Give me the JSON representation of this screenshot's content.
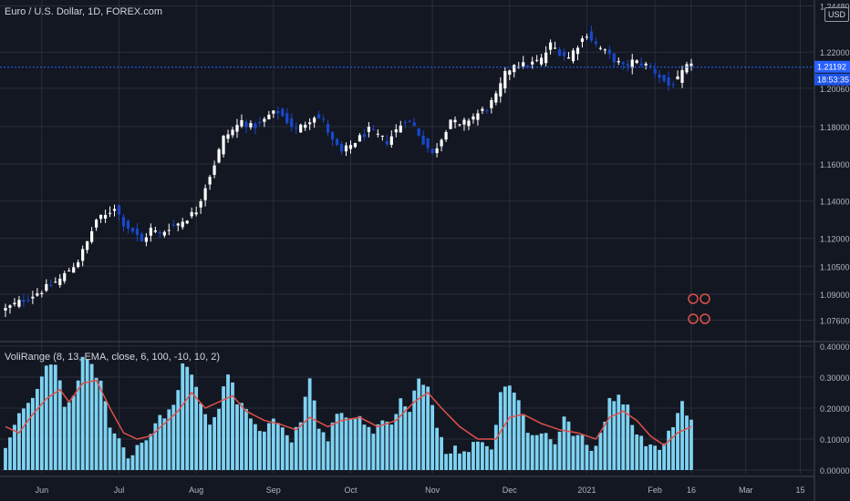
{
  "header": {
    "symbol_title": "Euro / U.S. Dollar, 1D, FOREX.com",
    "currency_badge": "USD",
    "indicator_title": "VoliRange (8, 13, EMA, close, 6, 100, -10, 10, 2)"
  },
  "price_axis": {
    "ticks": [
      "1.24480",
      "1.22000",
      "1.20060",
      "1.18000",
      "1.16000",
      "1.14000",
      "1.12000",
      "1.10500",
      "1.09000",
      "1.07600"
    ],
    "last_price": "1.21192",
    "countdown": "18:53:35"
  },
  "indicator_axis": {
    "ticks": [
      "0.40000",
      "0.30000",
      "0.20000",
      "0.10000",
      "0.00000"
    ]
  },
  "time_axis": {
    "labels": [
      "Jun",
      "Jul",
      "Aug",
      "Sep",
      "Oct",
      "Nov",
      "Dec",
      "2021",
      "Feb",
      "16",
      "Mar",
      "15"
    ]
  },
  "colors": {
    "background": "#131722",
    "candle_up": "#ffffff",
    "candle_down": "#1848cc",
    "volume_bar": "#7fd3f2",
    "ema_line": "#e0504a",
    "grid": "#2a2e39",
    "last_price_line": "#2962ff"
  },
  "chart_data": [
    {
      "type": "candlestick",
      "title": "Euro / U.S. Dollar, 1D, FOREX.com",
      "ylim": [
        1.066,
        1.248
      ],
      "grid": true,
      "x_labels": [
        "Jun",
        "Jul",
        "Aug",
        "Sep",
        "Oct",
        "Nov",
        "Dec",
        "2021",
        "Feb",
        "16",
        "Mar",
        "15"
      ],
      "close_path": [
        [
          0,
          1.082
        ],
        [
          4,
          1.087
        ],
        [
          8,
          1.092
        ],
        [
          12,
          1.098
        ],
        [
          16,
          1.108
        ],
        [
          18,
          1.118
        ],
        [
          20,
          1.13
        ],
        [
          22,
          1.132
        ],
        [
          24,
          1.137
        ],
        [
          26,
          1.128
        ],
        [
          28,
          1.124
        ],
        [
          30,
          1.118
        ],
        [
          32,
          1.125
        ],
        [
          34,
          1.122
        ],
        [
          36,
          1.126
        ],
        [
          38,
          1.128
        ],
        [
          40,
          1.131
        ],
        [
          42,
          1.135
        ],
        [
          44,
          1.148
        ],
        [
          46,
          1.16
        ],
        [
          48,
          1.174
        ],
        [
          50,
          1.178
        ],
        [
          52,
          1.183
        ],
        [
          54,
          1.18
        ],
        [
          56,
          1.181
        ],
        [
          58,
          1.186
        ],
        [
          60,
          1.188
        ],
        [
          62,
          1.183
        ],
        [
          64,
          1.178
        ],
        [
          66,
          1.182
        ],
        [
          68,
          1.186
        ],
        [
          70,
          1.183
        ],
        [
          72,
          1.172
        ],
        [
          74,
          1.166
        ],
        [
          76,
          1.17
        ],
        [
          78,
          1.174
        ],
        [
          80,
          1.178
        ],
        [
          82,
          1.175
        ],
        [
          84,
          1.172
        ],
        [
          86,
          1.178
        ],
        [
          88,
          1.184
        ],
        [
          90,
          1.18
        ],
        [
          92,
          1.172
        ],
        [
          94,
          1.165
        ],
        [
          96,
          1.174
        ],
        [
          98,
          1.184
        ],
        [
          100,
          1.18
        ],
        [
          102,
          1.184
        ],
        [
          104,
          1.187
        ],
        [
          106,
          1.19
        ],
        [
          108,
          1.196
        ],
        [
          110,
          1.208
        ],
        [
          112,
          1.214
        ],
        [
          114,
          1.213
        ],
        [
          116,
          1.214
        ],
        [
          118,
          1.216
        ],
        [
          120,
          1.224
        ],
        [
          122,
          1.22
        ],
        [
          124,
          1.217
        ],
        [
          126,
          1.224
        ],
        [
          128,
          1.23
        ],
        [
          130,
          1.224
        ],
        [
          132,
          1.22
        ],
        [
          134,
          1.216
        ],
        [
          136,
          1.212
        ],
        [
          138,
          1.215
        ],
        [
          140,
          1.214
        ],
        [
          142,
          1.212
        ],
        [
          144,
          1.207
        ],
        [
          146,
          1.202
        ],
        [
          148,
          1.205
        ],
        [
          150,
          1.212
        ],
        [
          151,
          1.212
        ]
      ],
      "last_price": 1.21192
    },
    {
      "type": "bar",
      "title": "VoliRange (8, 13, EMA, close, 6, 100, -10, 10, 2)",
      "ylim": [
        0,
        0.4
      ],
      "grid": true,
      "bar_path": [
        [
          0,
          0.08
        ],
        [
          3,
          0.17
        ],
        [
          5,
          0.22
        ],
        [
          7,
          0.25
        ],
        [
          9,
          0.33
        ],
        [
          11,
          0.35
        ],
        [
          13,
          0.2
        ],
        [
          15,
          0.24
        ],
        [
          17,
          0.36
        ],
        [
          19,
          0.33
        ],
        [
          21,
          0.28
        ],
        [
          23,
          0.15
        ],
        [
          25,
          0.1
        ],
        [
          27,
          0.04
        ],
        [
          29,
          0.08
        ],
        [
          31,
          0.1
        ],
        [
          33,
          0.15
        ],
        [
          35,
          0.18
        ],
        [
          37,
          0.2
        ],
        [
          39,
          0.34
        ],
        [
          41,
          0.3
        ],
        [
          43,
          0.22
        ],
        [
          45,
          0.15
        ],
        [
          47,
          0.2
        ],
        [
          49,
          0.32
        ],
        [
          51,
          0.22
        ],
        [
          53,
          0.19
        ],
        [
          55,
          0.14
        ],
        [
          57,
          0.11
        ],
        [
          59,
          0.17
        ],
        [
          61,
          0.15
        ],
        [
          63,
          0.1
        ],
        [
          65,
          0.16
        ],
        [
          67,
          0.3
        ],
        [
          69,
          0.14
        ],
        [
          71,
          0.09
        ],
        [
          73,
          0.19
        ],
        [
          75,
          0.17
        ],
        [
          77,
          0.18
        ],
        [
          79,
          0.14
        ],
        [
          81,
          0.12
        ],
        [
          83,
          0.15
        ],
        [
          85,
          0.14
        ],
        [
          87,
          0.22
        ],
        [
          89,
          0.18
        ],
        [
          91,
          0.31
        ],
        [
          93,
          0.27
        ],
        [
          95,
          0.15
        ],
        [
          97,
          0.06
        ],
        [
          99,
          0.07
        ],
        [
          101,
          0.05
        ],
        [
          103,
          0.09
        ],
        [
          105,
          0.1
        ],
        [
          107,
          0.06
        ],
        [
          109,
          0.26
        ],
        [
          111,
          0.28
        ],
        [
          113,
          0.22
        ],
        [
          115,
          0.13
        ],
        [
          117,
          0.11
        ],
        [
          119,
          0.12
        ],
        [
          121,
          0.09
        ],
        [
          123,
          0.17
        ],
        [
          125,
          0.12
        ],
        [
          127,
          0.1
        ],
        [
          129,
          0.06
        ],
        [
          131,
          0.12
        ],
        [
          133,
          0.22
        ],
        [
          135,
          0.25
        ],
        [
          137,
          0.2
        ],
        [
          139,
          0.12
        ],
        [
          141,
          0.09
        ],
        [
          143,
          0.07
        ],
        [
          145,
          0.08
        ],
        [
          147,
          0.15
        ],
        [
          149,
          0.22
        ],
        [
          151,
          0.16
        ]
      ],
      "ema_path": [
        [
          0,
          0.14
        ],
        [
          3,
          0.12
        ],
        [
          6,
          0.18
        ],
        [
          9,
          0.23
        ],
        [
          12,
          0.26
        ],
        [
          14,
          0.22
        ],
        [
          17,
          0.28
        ],
        [
          20,
          0.29
        ],
        [
          23,
          0.2
        ],
        [
          26,
          0.12
        ],
        [
          29,
          0.1
        ],
        [
          32,
          0.11
        ],
        [
          35,
          0.15
        ],
        [
          38,
          0.19
        ],
        [
          41,
          0.25
        ],
        [
          44,
          0.2
        ],
        [
          47,
          0.22
        ],
        [
          50,
          0.24
        ],
        [
          53,
          0.19
        ],
        [
          57,
          0.16
        ],
        [
          60,
          0.15
        ],
        [
          64,
          0.13
        ],
        [
          67,
          0.17
        ],
        [
          71,
          0.14
        ],
        [
          74,
          0.16
        ],
        [
          78,
          0.17
        ],
        [
          82,
          0.14
        ],
        [
          86,
          0.16
        ],
        [
          90,
          0.22
        ],
        [
          93,
          0.25
        ],
        [
          96,
          0.2
        ],
        [
          100,
          0.14
        ],
        [
          104,
          0.1
        ],
        [
          108,
          0.1
        ],
        [
          111,
          0.17
        ],
        [
          114,
          0.18
        ],
        [
          118,
          0.15
        ],
        [
          122,
          0.13
        ],
        [
          126,
          0.12
        ],
        [
          130,
          0.1
        ],
        [
          133,
          0.17
        ],
        [
          136,
          0.19
        ],
        [
          139,
          0.16
        ],
        [
          142,
          0.11
        ],
        [
          145,
          0.08
        ],
        [
          148,
          0.12
        ],
        [
          151,
          0.14
        ]
      ]
    }
  ]
}
